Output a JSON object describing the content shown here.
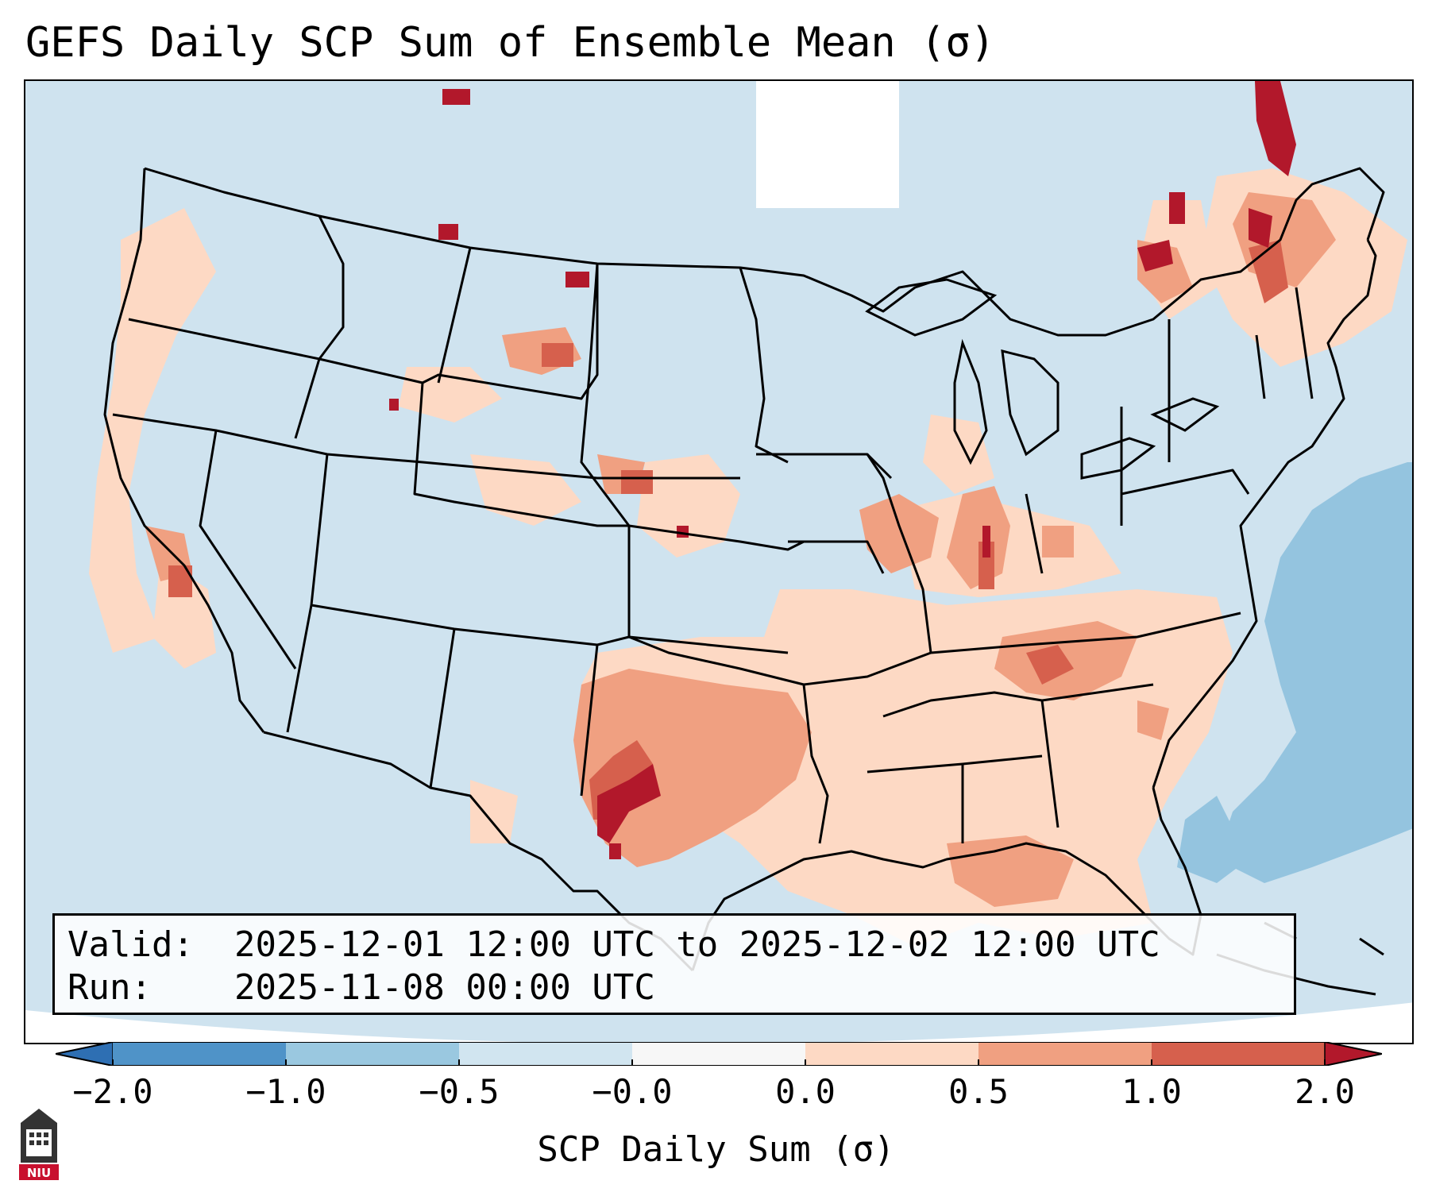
{
  "title": "GEFS Daily SCP Sum of Ensemble Mean (σ)",
  "map": {
    "region": "Continental United States",
    "background_color": "#cfe3ef",
    "ocean_tone_color": "#94c4df"
  },
  "info": {
    "valid_label": "Valid:",
    "valid_value": "2025-12-01 12:00 UTC to 2025-12-02 12:00 UTC",
    "run_label": "Run:",
    "run_value": "2025-11-08 00:00 UTC"
  },
  "colorbar": {
    "ticks": [
      "−2.0",
      "−1.0",
      "−0.5",
      "−0.0",
      "0.0",
      "0.5",
      "1.0",
      "2.0"
    ],
    "colors": [
      "#2e6fb3",
      "#4f93c8",
      "#9ac8e0",
      "#d1e5f0",
      "#f7f7f7",
      "#fdd9c4",
      "#f0a081",
      "#d6604d",
      "#b2182b"
    ],
    "label": "SCP Daily Sum (σ)"
  },
  "logo": {
    "text": "NIU",
    "icon": "niu-logo-icon",
    "color": "#c8102e"
  }
}
